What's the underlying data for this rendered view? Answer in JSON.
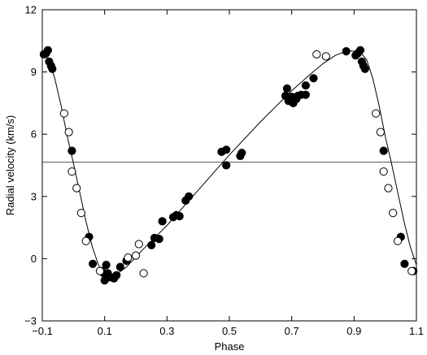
{
  "chart_data": {
    "type": "scatter",
    "title": "",
    "xlabel": "Phase",
    "ylabel": "Radial velocity (km/s)",
    "xlim": [
      -0.1,
      1.1
    ],
    "ylim": [
      -3,
      12
    ],
    "x_ticks": [
      -0.1,
      0.1,
      0.3,
      0.5,
      0.7,
      0.9,
      1.1
    ],
    "x_tick_labels": [
      "−0.1",
      "0.1",
      "0.3",
      "0.5",
      "0.7",
      "0.9",
      "1.1"
    ],
    "y_ticks": [
      -3,
      0,
      3,
      6,
      9,
      12
    ],
    "y_tick_labels": [
      "−3",
      "0",
      "3",
      "6",
      "9",
      "12"
    ],
    "grid": false,
    "legend": "none",
    "systemic_velocity": 4.65,
    "colors": {
      "axis": "#000000",
      "fit_line": "#000000",
      "systemic_line": "#555555",
      "marker": "#000000"
    },
    "series": [
      {
        "marker": "filled-circle",
        "points": [
          [
            -0.095,
            9.85
          ],
          [
            -0.088,
            9.9
          ],
          [
            -0.082,
            10.05
          ],
          [
            -0.078,
            9.5
          ],
          [
            -0.072,
            9.3
          ],
          [
            -0.068,
            9.15
          ],
          [
            -0.005,
            5.2
          ],
          [
            0.05,
            1.05
          ],
          [
            0.062,
            -0.25
          ],
          [
            0.09,
            -0.6
          ],
          [
            0.097,
            -0.7
          ],
          [
            0.1,
            -1.05
          ],
          [
            0.105,
            -0.3
          ],
          [
            0.11,
            -0.7
          ],
          [
            0.12,
            -0.9
          ],
          [
            0.13,
            -0.95
          ],
          [
            0.138,
            -0.8
          ],
          [
            0.15,
            -0.4
          ],
          [
            0.17,
            -0.1
          ],
          [
            0.25,
            0.65
          ],
          [
            0.26,
            1.0
          ],
          [
            0.275,
            0.95
          ],
          [
            0.285,
            1.8
          ],
          [
            0.32,
            2.0
          ],
          [
            0.33,
            2.1
          ],
          [
            0.34,
            2.05
          ],
          [
            0.36,
            2.8
          ],
          [
            0.37,
            3.0
          ],
          [
            0.475,
            5.15
          ],
          [
            0.49,
            5.25
          ],
          [
            0.49,
            4.5
          ],
          [
            0.535,
            4.95
          ],
          [
            0.54,
            5.1
          ],
          [
            0.68,
            7.85
          ],
          [
            0.685,
            8.2
          ],
          [
            0.69,
            7.6
          ],
          [
            0.7,
            7.8
          ],
          [
            0.705,
            7.5
          ],
          [
            0.715,
            7.7
          ],
          [
            0.72,
            7.85
          ],
          [
            0.73,
            7.9
          ],
          [
            0.745,
            8.35
          ],
          [
            0.745,
            7.9
          ],
          [
            0.77,
            8.7
          ],
          [
            0.875,
            10.0
          ],
          [
            0.905,
            9.8
          ],
          [
            0.912,
            9.9
          ],
          [
            0.92,
            10.05
          ],
          [
            0.925,
            9.5
          ],
          [
            0.93,
            9.3
          ],
          [
            0.935,
            9.15
          ],
          [
            0.995,
            5.2
          ],
          [
            1.05,
            1.05
          ],
          [
            1.062,
            -0.25
          ],
          [
            1.09,
            -0.6
          ]
        ]
      },
      {
        "marker": "open-circle",
        "points": [
          [
            -0.03,
            7.0
          ],
          [
            -0.015,
            6.1
          ],
          [
            -0.005,
            4.2
          ],
          [
            0.01,
            3.4
          ],
          [
            0.025,
            2.2
          ],
          [
            0.04,
            0.85
          ],
          [
            0.085,
            -0.6
          ],
          [
            0.175,
            0.05
          ],
          [
            0.2,
            0.15
          ],
          [
            0.21,
            0.7
          ],
          [
            0.225,
            -0.7
          ],
          [
            0.78,
            9.85
          ],
          [
            0.81,
            9.75
          ],
          [
            0.97,
            7.0
          ],
          [
            0.985,
            6.1
          ],
          [
            0.995,
            4.2
          ],
          [
            1.01,
            3.4
          ],
          [
            1.025,
            2.2
          ],
          [
            1.04,
            0.85
          ],
          [
            1.085,
            -0.6
          ]
        ]
      }
    ],
    "fit_curve": {
      "x": [
        -0.1,
        -0.08,
        -0.06,
        -0.04,
        -0.02,
        0.0,
        0.02,
        0.04,
        0.06,
        0.08,
        0.1,
        0.13,
        0.17,
        0.22,
        0.3,
        0.4,
        0.5,
        0.6,
        0.7,
        0.76,
        0.8,
        0.84,
        0.87,
        0.89,
        0.91,
        0.92,
        0.94,
        0.96,
        0.98,
        1.0,
        1.02,
        1.04,
        1.06,
        1.08,
        1.1
      ],
      "y": [
        9.95,
        9.6,
        8.7,
        7.4,
        5.9,
        4.6,
        3.2,
        1.8,
        0.6,
        -0.3,
        -0.8,
        -0.85,
        -0.4,
        0.4,
        1.6,
        3.3,
        5.0,
        6.6,
        8.1,
        8.9,
        9.4,
        9.8,
        9.97,
        10.02,
        9.98,
        9.95,
        9.6,
        8.7,
        7.4,
        5.9,
        4.6,
        3.2,
        1.8,
        0.6,
        -0.3
      ]
    }
  }
}
